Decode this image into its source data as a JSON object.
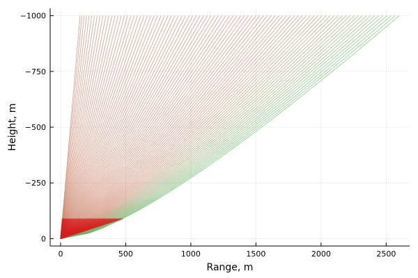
{
  "chart_data": {
    "type": "line",
    "title": "",
    "xlabel": "Range, m",
    "ylabel": "Height, m",
    "xlim": [
      -80,
      2680
    ],
    "ylim": [
      -1033,
      33
    ],
    "x_ticks": [
      0,
      500,
      1000,
      1500,
      2000,
      2500
    ],
    "x_tick_labels": [
      "0",
      "500",
      "1000",
      "1500",
      "2000",
      "2500"
    ],
    "y_ticks": [
      -1000,
      -750,
      -500,
      -250,
      0
    ],
    "y_tick_labels": [
      "−1000",
      "−750",
      "−500",
      "−250",
      "0"
    ],
    "y_inverted": true,
    "grid": true,
    "legend": "none",
    "colors": {
      "near": "#d42020",
      "mid": "#c87a5f",
      "far": "#5fb860"
    },
    "ray_family": {
      "count": 90,
      "source": [
        0,
        0
      ],
      "y_end": -1000,
      "x_end_min": 150,
      "x_end_max": 2600,
      "curvature": 0.45
    }
  }
}
